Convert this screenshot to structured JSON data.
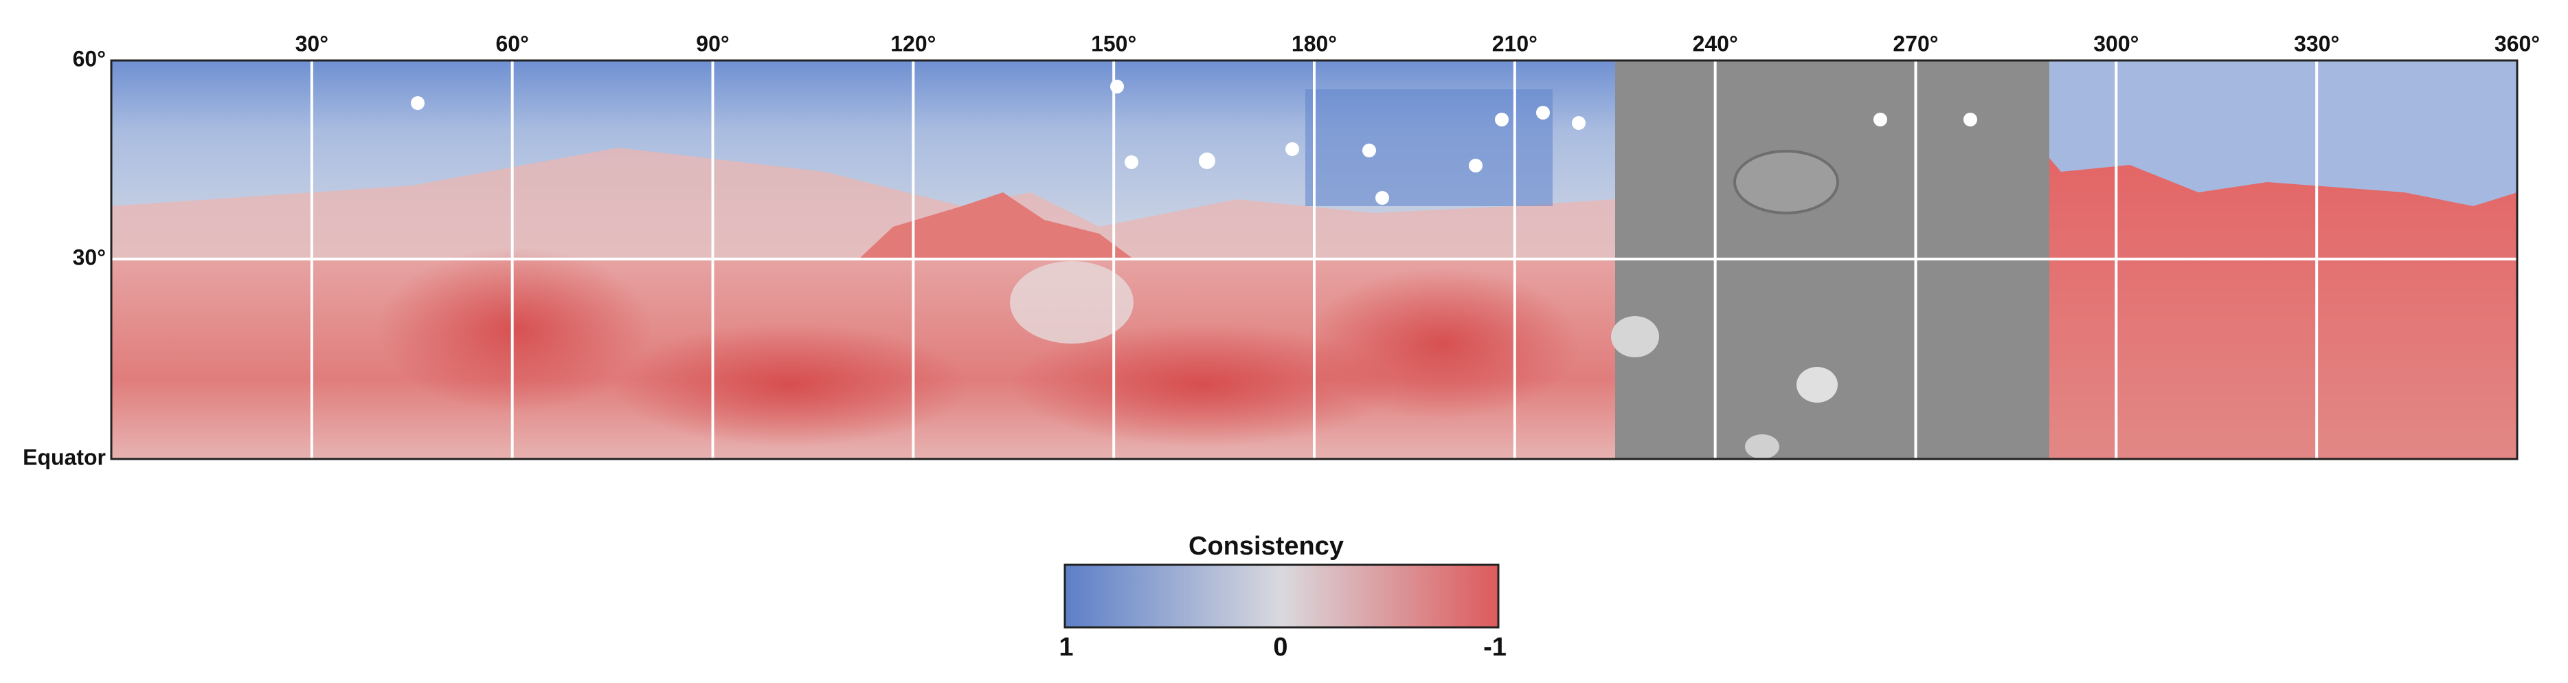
{
  "map": {
    "longitude_labels": [
      "30°",
      "60°",
      "90°",
      "120°",
      "150°",
      "180°",
      "210°",
      "240°",
      "270°",
      "300°",
      "330°",
      "360°"
    ],
    "latitude_labels": [
      "60°",
      "30°",
      "Equator"
    ]
  },
  "colorbar": {
    "title": "Consistency",
    "labels": [
      "1",
      "0",
      "-1"
    ]
  }
}
